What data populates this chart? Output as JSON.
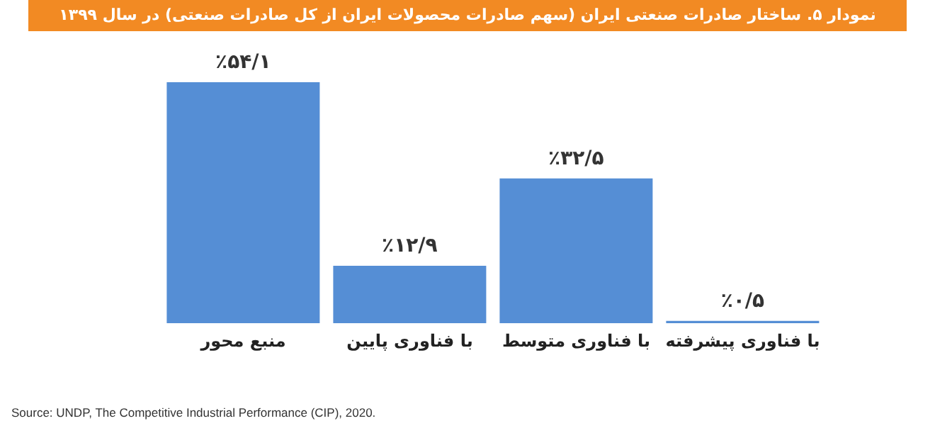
{
  "chart_data": {
    "type": "bar",
    "title": "نمودار ۵. ساختار صادرات صنعتی ایران (سهم صادرات محصولات ایران از کل صادرات صنعتی) در سال ۱۳۹۹",
    "categories": [
      "منبع محور",
      "با فناوری پایین",
      "با فناوری متوسط",
      "با فناوری پیشرفته"
    ],
    "values": [
      54.1,
      12.9,
      32.5,
      0.5
    ],
    "value_labels": [
      "٪۵۴/۱",
      "٪۱۲/۹",
      "٪۳۲/۵",
      "٪۰/۵"
    ],
    "color": "#558ed5",
    "annotations": [
      "Source: UNDP, The Competitive Industrial Performance (CIP), 2020."
    ]
  }
}
